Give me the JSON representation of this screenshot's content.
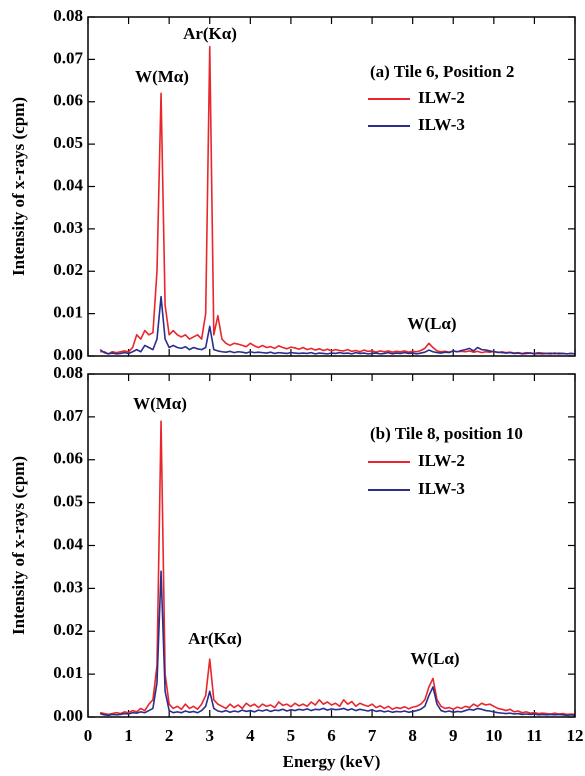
{
  "chart_data": [
    {
      "type": "line",
      "panel_label": "(a) Tile 6, Position 2",
      "ylabel": "Intensity of x-rays (cpm)",
      "annotations": [
        "W(Mα)",
        "Ar(Kα)",
        "W(Lα)"
      ],
      "xlim": [
        0,
        12
      ],
      "xticks": [
        0,
        1,
        2,
        3,
        4,
        5,
        6,
        7,
        8,
        9,
        10,
        11,
        12
      ],
      "ylim": [
        0,
        0.08
      ],
      "yticks": [
        {
          "value": 0,
          "label": "0.00"
        },
        {
          "value": 0.01,
          "label": "0.01"
        },
        {
          "value": 0.02,
          "label": "0.02"
        },
        {
          "value": 0.03,
          "label": "0.03"
        },
        {
          "value": 0.04,
          "label": "0.04"
        },
        {
          "value": 0.05,
          "label": "0.05"
        },
        {
          "value": 0.06,
          "label": "0.06"
        },
        {
          "value": 0.07,
          "label": "0.07"
        },
        {
          "value": 0.08,
          "label": "0.08"
        }
      ],
      "x": [
        0.3,
        0.4,
        0.5,
        0.6,
        0.7,
        0.8,
        0.9,
        1.0,
        1.1,
        1.2,
        1.3,
        1.4,
        1.5,
        1.6,
        1.7,
        1.8,
        1.9,
        2.0,
        2.1,
        2.2,
        2.3,
        2.4,
        2.5,
        2.6,
        2.7,
        2.8,
        2.9,
        3.0,
        3.1,
        3.2,
        3.3,
        3.4,
        3.5,
        3.6,
        3.7,
        3.8,
        3.9,
        4.0,
        4.1,
        4.2,
        4.3,
        4.4,
        4.5,
        4.6,
        4.7,
        4.8,
        4.9,
        5.0,
        5.1,
        5.2,
        5.3,
        5.4,
        5.5,
        5.6,
        5.7,
        5.8,
        5.9,
        6.0,
        6.1,
        6.2,
        6.3,
        6.4,
        6.5,
        6.6,
        6.7,
        6.8,
        6.9,
        7.0,
        7.1,
        7.2,
        7.3,
        7.4,
        7.5,
        7.6,
        7.7,
        7.8,
        7.9,
        8.0,
        8.1,
        8.2,
        8.3,
        8.4,
        8.5,
        8.6,
        8.7,
        8.8,
        8.9,
        9.0,
        9.1,
        9.2,
        9.3,
        9.4,
        9.5,
        9.6,
        9.7,
        9.8,
        9.9,
        10.0,
        10.1,
        10.2,
        10.3,
        10.4,
        10.5,
        10.6,
        10.7,
        10.8,
        10.9,
        11.0,
        11.1,
        11.2,
        11.3,
        11.4,
        11.5,
        11.6,
        11.7,
        11.8,
        11.9,
        12.0
      ],
      "series": [
        {
          "name": "ILW-2",
          "color": "#e8262b",
          "values": [
            0.001,
            0.001,
            0.0005,
            0.001,
            0.0008,
            0.001,
            0.0012,
            0.001,
            0.002,
            0.005,
            0.004,
            0.006,
            0.005,
            0.0055,
            0.02,
            0.062,
            0.012,
            0.005,
            0.006,
            0.005,
            0.0045,
            0.005,
            0.004,
            0.0045,
            0.005,
            0.004,
            0.01,
            0.073,
            0.005,
            0.0095,
            0.004,
            0.003,
            0.0025,
            0.003,
            0.0028,
            0.0025,
            0.0022,
            0.003,
            0.0024,
            0.002,
            0.0025,
            0.002,
            0.0022,
            0.0018,
            0.0024,
            0.002,
            0.0017,
            0.0021,
            0.0019,
            0.0016,
            0.002,
            0.0015,
            0.0018,
            0.0014,
            0.0017,
            0.0013,
            0.0016,
            0.0012,
            0.0015,
            0.0013,
            0.0012,
            0.0015,
            0.0011,
            0.0013,
            0.001,
            0.0014,
            0.0011,
            0.0012,
            0.0009,
            0.0012,
            0.001,
            0.0012,
            0.0009,
            0.0011,
            0.001,
            0.0012,
            0.0009,
            0.0011,
            0.001,
            0.0013,
            0.0018,
            0.003,
            0.002,
            0.0012,
            0.001,
            0.0011,
            0.0009,
            0.0012,
            0.001,
            0.0011,
            0.001,
            0.0012,
            0.0009,
            0.0011,
            0.0008,
            0.001,
            0.0009,
            0.0011,
            0.0008,
            0.001,
            0.0008,
            0.0009,
            0.0007,
            0.0008,
            0.0006,
            0.0008,
            0.0007,
            0.0006,
            0.0008,
            0.0007,
            0.0006,
            0.0007,
            0.0005,
            0.0007,
            0.0006,
            0.0005,
            0.0006,
            0.0005
          ]
        },
        {
          "name": "ILW-3",
          "color": "#2b2e8c",
          "values": [
            0.0015,
            0.0008,
            0.0005,
            0.0007,
            0.0005,
            0.0006,
            0.0008,
            0.0006,
            0.001,
            0.0015,
            0.001,
            0.0025,
            0.002,
            0.0015,
            0.004,
            0.014,
            0.004,
            0.002,
            0.0025,
            0.002,
            0.0018,
            0.0022,
            0.0015,
            0.002,
            0.0017,
            0.0015,
            0.002,
            0.007,
            0.0015,
            0.0012,
            0.001,
            0.0009,
            0.0011,
            0.0008,
            0.001,
            0.0009,
            0.0007,
            0.001,
            0.0008,
            0.0009,
            0.0008,
            0.0007,
            0.0009,
            0.0006,
            0.0008,
            0.0007,
            0.0006,
            0.0008,
            0.0007,
            0.0006,
            0.0007,
            0.0006,
            0.0008,
            0.0005,
            0.0007,
            0.0006,
            0.0005,
            0.0007,
            0.0006,
            0.0008,
            0.0006,
            0.0007,
            0.0005,
            0.0008,
            0.0006,
            0.0007,
            0.0005,
            0.0006,
            0.0007,
            0.0005,
            0.0006,
            0.0008,
            0.0005,
            0.0007,
            0.0006,
            0.0008,
            0.0006,
            0.0007,
            0.0005,
            0.0007,
            0.0009,
            0.0014,
            0.001,
            0.0008,
            0.0007,
            0.0009,
            0.0008,
            0.0012,
            0.001,
            0.0013,
            0.0015,
            0.0018,
            0.0012,
            0.002,
            0.0015,
            0.0014,
            0.0012,
            0.001,
            0.0009,
            0.0008,
            0.0007,
            0.0008,
            0.0006,
            0.0007,
            0.0005,
            0.0006,
            0.0007,
            0.0005,
            0.0006,
            0.0005,
            0.0006,
            0.0005,
            0.0007,
            0.0005,
            0.0006,
            0.0005,
            0.0006,
            0.0005
          ]
        }
      ]
    },
    {
      "type": "line",
      "panel_label": "(b) Tile 8, position 10",
      "ylabel": "Intensity of x-rays (cpm)",
      "xlabel": "Energy (keV)",
      "annotations": [
        "W(Mα)",
        "Ar(Kα)",
        "W(Lα)"
      ],
      "xlim": [
        0,
        12
      ],
      "xticks": [
        0,
        1,
        2,
        3,
        4,
        5,
        6,
        7,
        8,
        9,
        10,
        11,
        12
      ],
      "ylim": [
        0,
        0.08
      ],
      "yticks": [
        {
          "value": 0,
          "label": "0.00"
        },
        {
          "value": 0.01,
          "label": "0.01"
        },
        {
          "value": 0.02,
          "label": "0.02"
        },
        {
          "value": 0.03,
          "label": "0.03"
        },
        {
          "value": 0.04,
          "label": "0.04"
        },
        {
          "value": 0.05,
          "label": "0.05"
        },
        {
          "value": 0.06,
          "label": "0.06"
        },
        {
          "value": 0.07,
          "label": "0.07"
        },
        {
          "value": 0.08,
          "label": "0.08"
        }
      ],
      "x": [
        0.3,
        0.4,
        0.5,
        0.6,
        0.7,
        0.8,
        0.9,
        1.0,
        1.1,
        1.2,
        1.3,
        1.4,
        1.5,
        1.6,
        1.7,
        1.8,
        1.9,
        2.0,
        2.1,
        2.2,
        2.3,
        2.4,
        2.5,
        2.6,
        2.7,
        2.8,
        2.9,
        3.0,
        3.1,
        3.2,
        3.3,
        3.4,
        3.5,
        3.6,
        3.7,
        3.8,
        3.9,
        4.0,
        4.1,
        4.2,
        4.3,
        4.4,
        4.5,
        4.6,
        4.7,
        4.8,
        4.9,
        5.0,
        5.1,
        5.2,
        5.3,
        5.4,
        5.5,
        5.6,
        5.7,
        5.8,
        5.9,
        6.0,
        6.1,
        6.2,
        6.3,
        6.4,
        6.5,
        6.6,
        6.7,
        6.8,
        6.9,
        7.0,
        7.1,
        7.2,
        7.3,
        7.4,
        7.5,
        7.6,
        7.7,
        7.8,
        7.9,
        8.0,
        8.1,
        8.2,
        8.3,
        8.4,
        8.5,
        8.6,
        8.7,
        8.8,
        8.9,
        9.0,
        9.1,
        9.2,
        9.3,
        9.4,
        9.5,
        9.6,
        9.7,
        9.8,
        9.9,
        10.0,
        10.1,
        10.2,
        10.3,
        10.4,
        10.5,
        10.6,
        10.7,
        10.8,
        10.9,
        11.0,
        11.1,
        11.2,
        11.3,
        11.4,
        11.5,
        11.6,
        11.7,
        11.8,
        11.9,
        12.0
      ],
      "series": [
        {
          "name": "ILW-2",
          "color": "#e8262b",
          "values": [
            0.001,
            0.0008,
            0.0006,
            0.0008,
            0.001,
            0.0008,
            0.0012,
            0.001,
            0.0015,
            0.0012,
            0.002,
            0.0015,
            0.003,
            0.004,
            0.012,
            0.069,
            0.01,
            0.003,
            0.002,
            0.0025,
            0.0018,
            0.003,
            0.002,
            0.0025,
            0.0018,
            0.003,
            0.005,
            0.0135,
            0.004,
            0.003,
            0.0025,
            0.002,
            0.003,
            0.0022,
            0.0028,
            0.002,
            0.0032,
            0.0025,
            0.003,
            0.0022,
            0.003,
            0.0025,
            0.0028,
            0.0022,
            0.0035,
            0.0027,
            0.003,
            0.0024,
            0.0032,
            0.0026,
            0.003,
            0.0025,
            0.0035,
            0.0028,
            0.004,
            0.003,
            0.0035,
            0.0028,
            0.0032,
            0.0025,
            0.004,
            0.003,
            0.0036,
            0.0025,
            0.0032,
            0.0028,
            0.0025,
            0.003,
            0.0022,
            0.0026,
            0.002,
            0.0025,
            0.0018,
            0.0022,
            0.002,
            0.0024,
            0.0019,
            0.0023,
            0.0025,
            0.003,
            0.004,
            0.007,
            0.009,
            0.004,
            0.0025,
            0.002,
            0.0022,
            0.0018,
            0.0023,
            0.002,
            0.0025,
            0.0022,
            0.003,
            0.0025,
            0.0032,
            0.0028,
            0.003,
            0.0025,
            0.002,
            0.0018,
            0.0015,
            0.0018,
            0.0012,
            0.0014,
            0.001,
            0.0012,
            0.0009,
            0.001,
            0.0008,
            0.0009,
            0.0008,
            0.0007,
            0.0009,
            0.0007,
            0.0008,
            0.0006,
            0.0007,
            0.0006
          ]
        },
        {
          "name": "ILW-3",
          "color": "#2b2e8c",
          "values": [
            0.0008,
            0.0005,
            0.0004,
            0.0006,
            0.0005,
            0.0006,
            0.0008,
            0.0007,
            0.001,
            0.0009,
            0.0012,
            0.001,
            0.0015,
            0.002,
            0.008,
            0.034,
            0.006,
            0.0015,
            0.001,
            0.0012,
            0.001,
            0.0014,
            0.0011,
            0.0013,
            0.001,
            0.0015,
            0.0025,
            0.006,
            0.002,
            0.0014,
            0.0012,
            0.0015,
            0.0011,
            0.0014,
            0.0012,
            0.0016,
            0.0013,
            0.0015,
            0.0012,
            0.0016,
            0.0014,
            0.0017,
            0.0013,
            0.0016,
            0.0015,
            0.0018,
            0.0014,
            0.0017,
            0.0015,
            0.0018,
            0.0016,
            0.0019,
            0.0015,
            0.0018,
            0.0017,
            0.002,
            0.0016,
            0.0019,
            0.0017,
            0.0018,
            0.002,
            0.0016,
            0.0019,
            0.0015,
            0.0018,
            0.0016,
            0.0014,
            0.0017,
            0.0013,
            0.0015,
            0.0012,
            0.0014,
            0.0011,
            0.0013,
            0.0012,
            0.0014,
            0.0011,
            0.0013,
            0.0015,
            0.0018,
            0.0025,
            0.005,
            0.007,
            0.003,
            0.0015,
            0.0012,
            0.0014,
            0.0011,
            0.0013,
            0.0012,
            0.0015,
            0.0018,
            0.0016,
            0.002,
            0.0018,
            0.0015,
            0.0014,
            0.0012,
            0.001,
            0.0009,
            0.0008,
            0.0009,
            0.0007,
            0.0008,
            0.0006,
            0.0007,
            0.0006,
            0.0007,
            0.0005,
            0.0006,
            0.0005,
            0.0006,
            0.0005,
            0.0006,
            0.0005,
            0.0004,
            0.0005,
            0.0004
          ]
        }
      ]
    }
  ]
}
